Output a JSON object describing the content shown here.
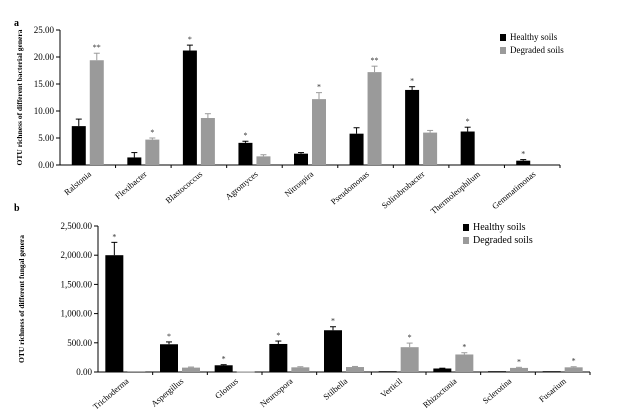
{
  "chart_data": [
    {
      "panel_label": "a",
      "type": "bar",
      "title": "",
      "xlabel": "",
      "ylabel": "OTU richness of different bacterial genera",
      "ylim": [
        0,
        25
      ],
      "yticks": [
        "0.00",
        "5.00",
        "10.00",
        "15.00",
        "20.00",
        "25.00"
      ],
      "ytick_values": [
        0,
        5,
        10,
        15,
        20,
        25
      ],
      "grid": false,
      "legend_position": "top-right",
      "categories": [
        "Ralstonia",
        "Flexibacter",
        "Blastococcus",
        "Agromyces",
        "Nitrospira",
        "Pseudomonas",
        "Solirubrobacter",
        "Thermoleophilum",
        "Gemmatimonas"
      ],
      "series": [
        {
          "name": "Healthy soils",
          "color": "#000000",
          "values": [
            7.2,
            1.4,
            21.2,
            4.1,
            2.1,
            5.8,
            13.9,
            6.2,
            0.8
          ],
          "errors": [
            1.3,
            0.9,
            1.0,
            0.3,
            0.2,
            1.1,
            0.6,
            0.8,
            0.2
          ],
          "annotations": [
            "",
            "",
            "*",
            "*",
            "",
            "",
            "*",
            "*",
            "*"
          ]
        },
        {
          "name": "Degraded soils",
          "color": "#9a9a9a",
          "values": [
            19.4,
            4.7,
            8.7,
            1.6,
            12.2,
            17.2,
            6.0,
            null,
            null
          ],
          "errors": [
            1.3,
            0.3,
            0.8,
            0.3,
            1.2,
            1.1,
            0.4,
            null,
            null
          ],
          "annotations": [
            "**",
            "*",
            "",
            "",
            "*",
            "**",
            "",
            "",
            ""
          ]
        }
      ]
    },
    {
      "panel_label": "b",
      "type": "bar",
      "title": "",
      "xlabel": "",
      "ylabel": "OTU richness of different fungal genera",
      "ylim": [
        0,
        2500
      ],
      "yticks": [
        "0.00",
        "500.00",
        "1,000.00",
        "1,500.00",
        "2,000.00",
        "2,500.00"
      ],
      "ytick_values": [
        0,
        500,
        1000,
        1500,
        2000,
        2500
      ],
      "grid": false,
      "legend_position": "top-right",
      "categories": [
        "Trichoderma",
        "Aspergillus",
        "Glomus",
        "Neurospora",
        "Stilbella",
        "Verticil",
        "Rhizoctonia",
        "Sclerotina",
        "Fusarium"
      ],
      "series": [
        {
          "name": "Healthy soils",
          "color": "#000000",
          "values": [
            2000,
            475,
            115,
            480,
            715,
            0,
            60,
            0,
            0
          ],
          "errors": [
            220,
            40,
            10,
            50,
            60,
            0,
            5,
            0,
            0
          ],
          "annotations": [
            "*",
            "*",
            "*",
            "*",
            "*",
            "",
            "",
            "",
            ""
          ]
        },
        {
          "name": "Degraded soils",
          "color": "#9a9a9a",
          "values": [
            0,
            75,
            8,
            80,
            85,
            425,
            300,
            70,
            80
          ],
          "errors": [
            0,
            10,
            0,
            10,
            10,
            70,
            30,
            10,
            10
          ],
          "annotations": [
            "",
            "",
            "",
            "",
            "",
            "*",
            "*",
            "*",
            "*"
          ]
        }
      ]
    }
  ]
}
